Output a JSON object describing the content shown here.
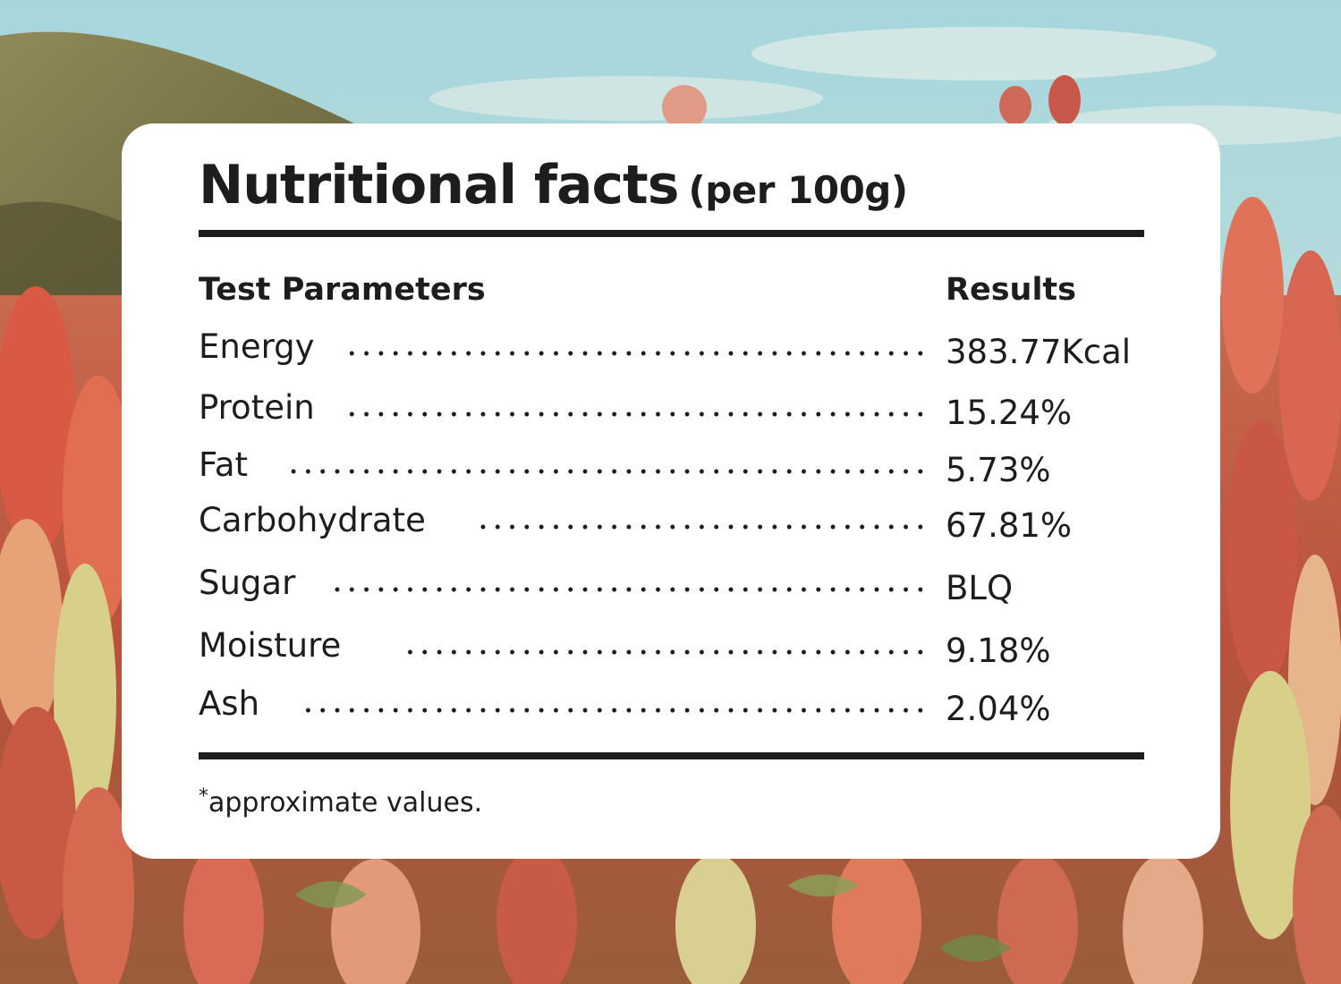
{
  "card": {
    "title": "Nutritional facts",
    "subtitle": "(per 100g)",
    "header": {
      "parameter": "Test Parameters",
      "result": "Results"
    },
    "rows": [
      {
        "name": "Energy",
        "value": "383.77Kcal"
      },
      {
        "name": "Protein",
        "value": "15.24%"
      },
      {
        "name": "Fat",
        "value": "5.73%"
      },
      {
        "name": "Carbohydrate",
        "value": "67.81%"
      },
      {
        "name": "Sugar",
        "value": "BLQ"
      },
      {
        "name": "Moisture",
        "value": "9.18%"
      },
      {
        "name": "Ash",
        "value": "2.04%"
      }
    ],
    "footnote_mark": "*",
    "footnote": "approximate values."
  },
  "colors": {
    "text": "#1d1d1b",
    "card": "#ffffff",
    "sky": "#9fcfd4",
    "hill": "#8a8150",
    "quinoa_red": "#d9624d",
    "quinoa_pink": "#e39a86",
    "quinoa_yellow": "#d7cf8a"
  }
}
